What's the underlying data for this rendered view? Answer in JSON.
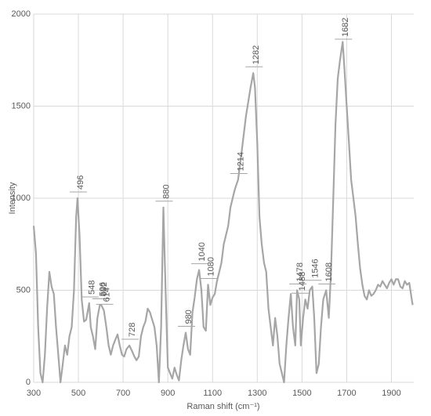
{
  "chart_data": {
    "type": "line",
    "x_label": "Raman shift (cm⁻¹)",
    "y_label": "Intensity",
    "xlim": [
      300,
      2000
    ],
    "xticks": [
      300,
      500,
      700,
      900,
      1100,
      1300,
      1500,
      1700,
      1900
    ],
    "ylim": [
      0,
      2000
    ],
    "yticks": [
      0,
      500,
      1000,
      1500,
      2000
    ],
    "grid": true,
    "color": "#a6a6a6",
    "annotations": [
      496,
      548,
      596,
      602,
      614,
      728,
      880,
      980,
      1040,
      1080,
      1214,
      1282,
      1478,
      1488,
      1546,
      1608,
      1682
    ],
    "x": [
      300,
      310,
      320,
      330,
      340,
      350,
      360,
      370,
      380,
      390,
      400,
      410,
      420,
      430,
      440,
      450,
      460,
      470,
      480,
      490,
      496,
      505,
      515,
      525,
      535,
      548,
      555,
      565,
      575,
      585,
      596,
      602,
      614,
      625,
      635,
      645,
      655,
      665,
      675,
      685,
      695,
      705,
      715,
      728,
      740,
      750,
      760,
      770,
      780,
      790,
      800,
      810,
      820,
      830,
      840,
      850,
      860,
      870,
      880,
      890,
      900,
      910,
      920,
      930,
      940,
      950,
      960,
      970,
      980,
      990,
      1000,
      1010,
      1020,
      1030,
      1040,
      1050,
      1060,
      1070,
      1080,
      1090,
      1100,
      1110,
      1120,
      1130,
      1140,
      1150,
      1160,
      1170,
      1180,
      1190,
      1200,
      1214,
      1230,
      1250,
      1270,
      1282,
      1290,
      1300,
      1310,
      1320,
      1330,
      1340,
      1350,
      1360,
      1370,
      1380,
      1390,
      1400,
      1410,
      1420,
      1430,
      1440,
      1450,
      1460,
      1470,
      1478,
      1488,
      1495,
      1505,
      1515,
      1525,
      1535,
      1546,
      1555,
      1565,
      1575,
      1585,
      1595,
      1608,
      1620,
      1630,
      1640,
      1650,
      1660,
      1670,
      1682,
      1690,
      1700,
      1710,
      1720,
      1730,
      1740,
      1750,
      1760,
      1770,
      1780,
      1790,
      1800,
      1810,
      1820,
      1830,
      1840,
      1850,
      1860,
      1870,
      1880,
      1890,
      1900,
      1910,
      1920,
      1930,
      1940,
      1950,
      1960,
      1970,
      1980,
      1990,
      1995
    ],
    "values": [
      850,
      700,
      300,
      50,
      0,
      150,
      400,
      600,
      520,
      480,
      300,
      150,
      0,
      100,
      200,
      150,
      250,
      300,
      500,
      900,
      1000,
      800,
      450,
      330,
      340,
      430,
      300,
      250,
      180,
      350,
      420,
      420,
      390,
      300,
      200,
      150,
      200,
      230,
      260,
      200,
      150,
      140,
      180,
      200,
      170,
      140,
      120,
      140,
      250,
      300,
      330,
      400,
      380,
      340,
      300,
      200,
      0,
      300,
      950,
      500,
      80,
      50,
      20,
      80,
      40,
      10,
      120,
      200,
      270,
      180,
      150,
      380,
      460,
      560,
      610,
      500,
      300,
      280,
      530,
      420,
      460,
      480,
      550,
      600,
      650,
      750,
      800,
      850,
      950,
      1000,
      1050,
      1100,
      1250,
      1450,
      1600,
      1680,
      1600,
      1300,
      900,
      750,
      650,
      600,
      400,
      300,
      200,
      350,
      250,
      100,
      50,
      0,
      200,
      350,
      480,
      300,
      200,
      500,
      450,
      200,
      350,
      450,
      400,
      500,
      520,
      350,
      50,
      100,
      300,
      450,
      500,
      350,
      600,
      1000,
      1400,
      1650,
      1750,
      1850,
      1700,
      1500,
      1300,
      1100,
      1000,
      900,
      750,
      620,
      530,
      470,
      450,
      500,
      470,
      480,
      500,
      530,
      520,
      550,
      530,
      510,
      540,
      560,
      530,
      560,
      560,
      520,
      510,
      550,
      530,
      540,
      460,
      420
    ]
  }
}
